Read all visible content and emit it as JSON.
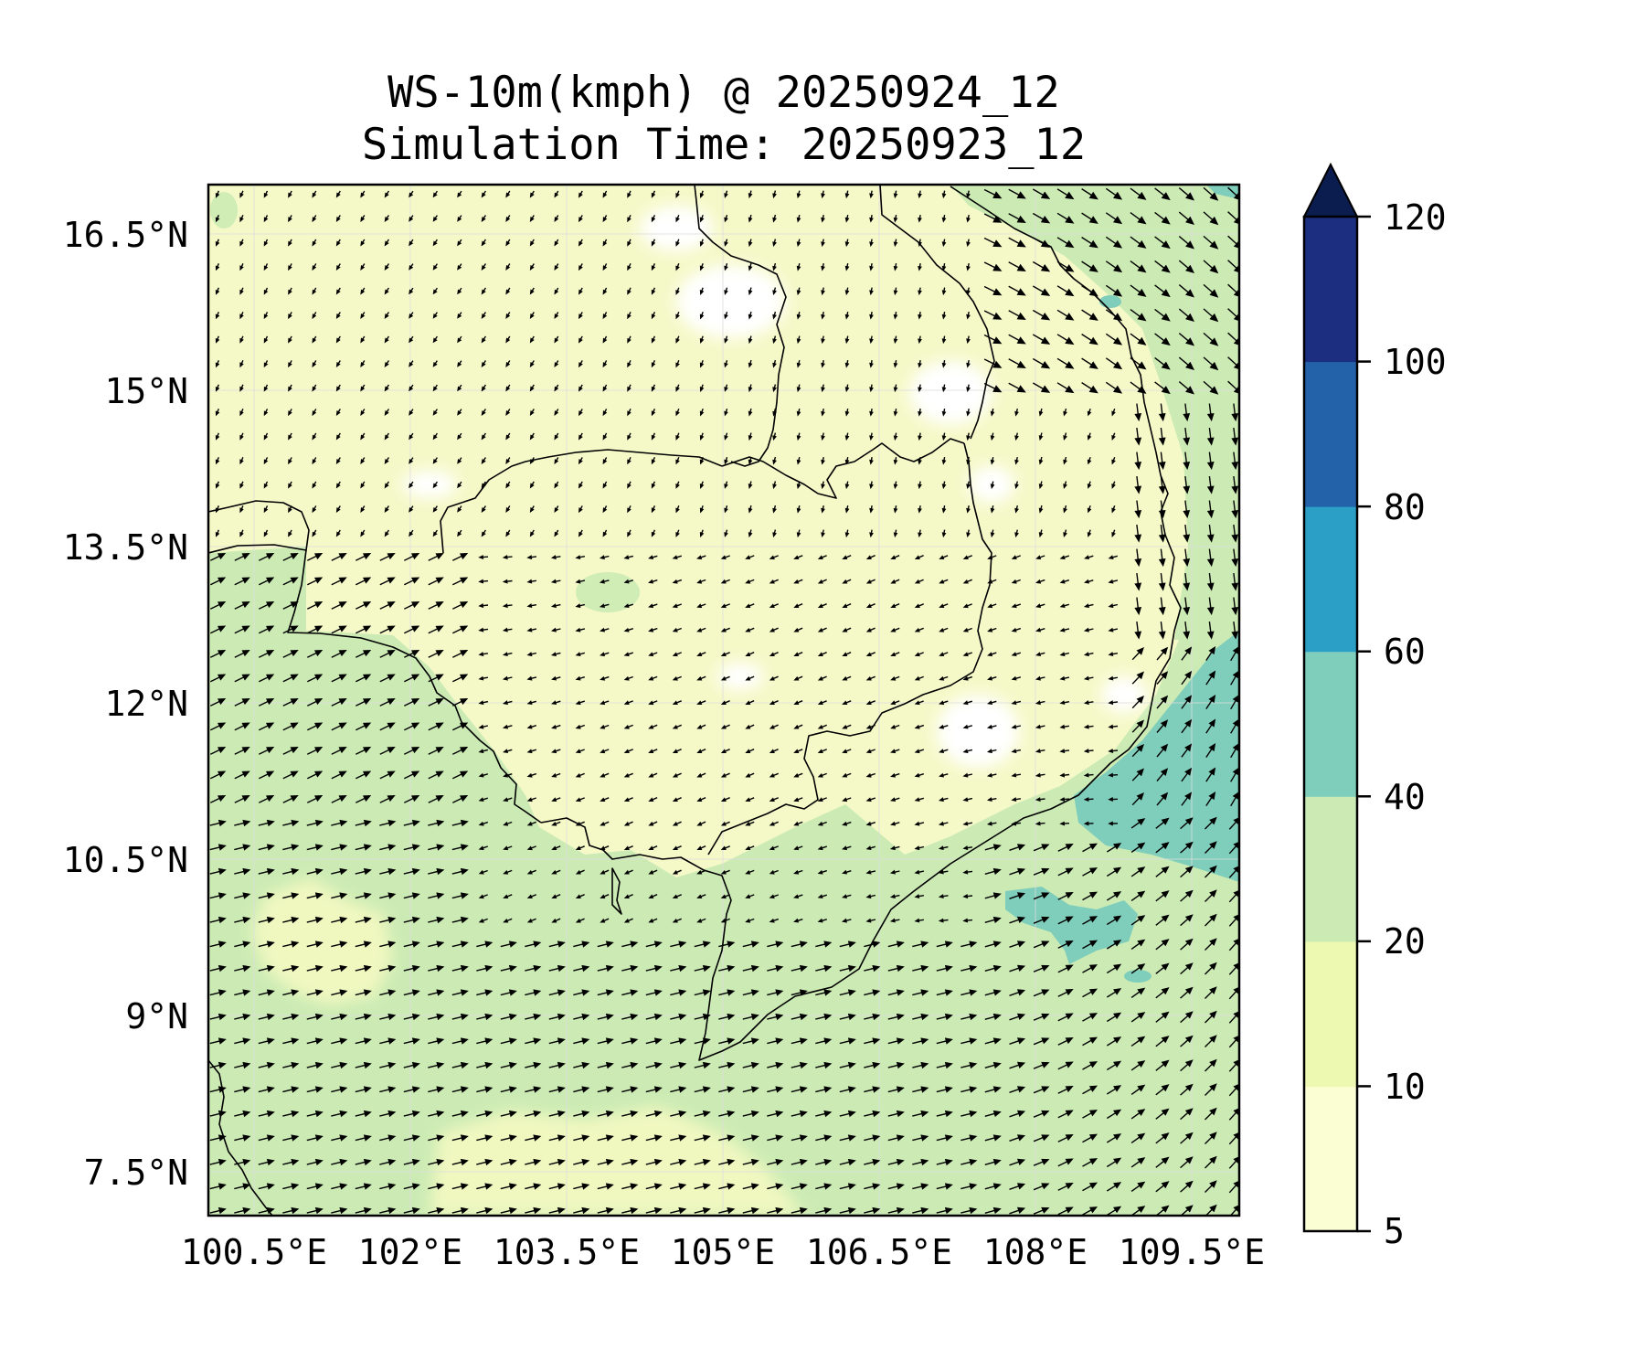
{
  "title": {
    "line1": "WS-10m(kmph) @ 20250924_12",
    "line2": "Simulation Time: 20250923_12"
  },
  "axes": {
    "lon_ticks": [
      "100.5°E",
      "102°E",
      "103.5°E",
      "105°E",
      "106.5°E",
      "108°E",
      "109.5°E"
    ],
    "lat_ticks": [
      "16.5°N",
      "15°N",
      "13.5°N",
      "12°N",
      "10.5°N",
      "9°N",
      "7.5°N"
    ],
    "lon_values": [
      100.5,
      102,
      103.5,
      105,
      106.5,
      108,
      109.5
    ],
    "lat_values": [
      16.5,
      15,
      13.5,
      12,
      10.5,
      9,
      7.5
    ],
    "lon_range": [
      100.0,
      109.9
    ],
    "lat_range": [
      7.0,
      16.95
    ]
  },
  "colorbar": {
    "levels": [
      5,
      10,
      20,
      40,
      60,
      80,
      100,
      120
    ],
    "labels": [
      "5",
      "10",
      "20",
      "40",
      "60",
      "80",
      "100",
      "120"
    ],
    "colors": [
      "#fbfdd3",
      "#edf8b1",
      "#ccebb4",
      "#7fcdbb",
      "#2c9fc6",
      "#2361a9",
      "#1c2e80"
    ],
    "extend_color": "#0b1d4f"
  },
  "map": {
    "colors": {
      "calm": "#ffffff",
      "light": "#fbfdd3",
      "light2": "#edf8b1",
      "moderate": "#ccebb4",
      "strong": "#7fcdbb",
      "coast": "#000000",
      "grid": "#d9d9d9",
      "arrow": "#000000"
    }
  }
}
